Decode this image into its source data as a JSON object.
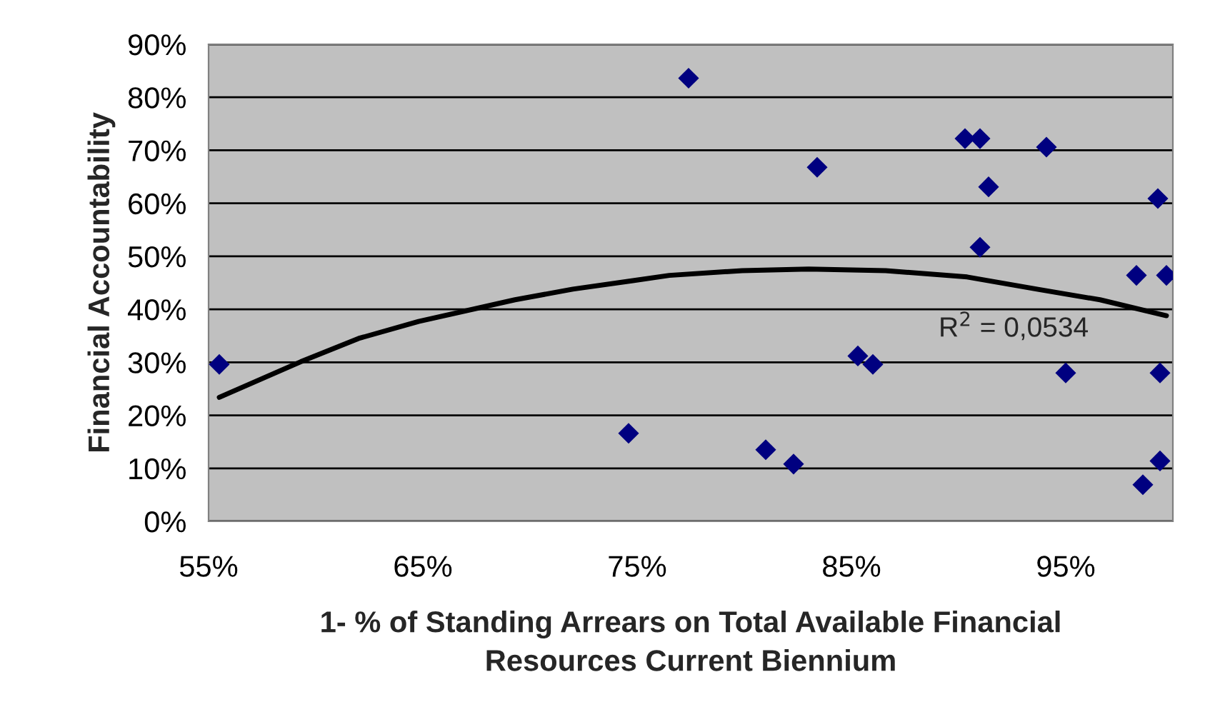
{
  "chart_data": {
    "type": "scatter",
    "xlabel": "1- % of Standing Arrears on Total Available Financial\nResources Current Biennium",
    "ylabel": "Financial Accountability",
    "xlim": [
      55,
      100
    ],
    "xticks": [
      {
        "value": 55,
        "label": "55%"
      },
      {
        "value": 65,
        "label": "65%"
      },
      {
        "value": 75,
        "label": "75%"
      },
      {
        "value": 85,
        "label": "85%"
      },
      {
        "value": 95,
        "label": "95%"
      }
    ],
    "ylim": [
      0,
      90
    ],
    "yticks": [
      {
        "value": 0,
        "label": "0%"
      },
      {
        "value": 10,
        "label": "10%"
      },
      {
        "value": 20,
        "label": "20%"
      },
      {
        "value": 30,
        "label": "30%"
      },
      {
        "value": 40,
        "label": "40%"
      },
      {
        "value": 50,
        "label": "50%"
      },
      {
        "value": 60,
        "label": "60%"
      },
      {
        "value": 70,
        "label": "70%"
      },
      {
        "value": 80,
        "label": "80%"
      },
      {
        "value": 90,
        "label": "90%"
      }
    ],
    "grid": "y",
    "legend": false,
    "series": [
      {
        "marker": "diamond",
        "color": "#000080",
        "x": [
          55.5,
          74.6,
          77.4,
          83.4,
          81.0,
          82.3,
          85.3,
          86.0,
          90.3,
          91.0,
          91.4,
          91.0,
          94.1,
          95.0,
          99.3,
          98.3,
          99.7,
          99.4,
          98.6,
          99.4
        ],
        "values": [
          29.6,
          16.6,
          83.6,
          66.8,
          13.5,
          10.8,
          31.2,
          29.6,
          72.2,
          72.2,
          63.1,
          51.7,
          70.6,
          28.0,
          60.9,
          46.4,
          46.4,
          28.0,
          6.9,
          11.4
        ]
      },
      {
        "type": "line",
        "color": "#000000",
        "x": [
          55.5,
          59.3,
          62.0,
          64.8,
          69.3,
          72.0,
          74.8,
          76.5,
          79.9,
          83.0,
          86.6,
          90.4,
          93.8,
          96.6,
          99.7
        ],
        "values": [
          23.4,
          30.1,
          34.5,
          37.7,
          41.8,
          43.8,
          45.4,
          46.4,
          47.3,
          47.6,
          47.3,
          46.1,
          43.7,
          41.8,
          38.8
        ]
      }
    ],
    "annotations": [
      "R$^{2}$ = 0,0534"
    ]
  }
}
